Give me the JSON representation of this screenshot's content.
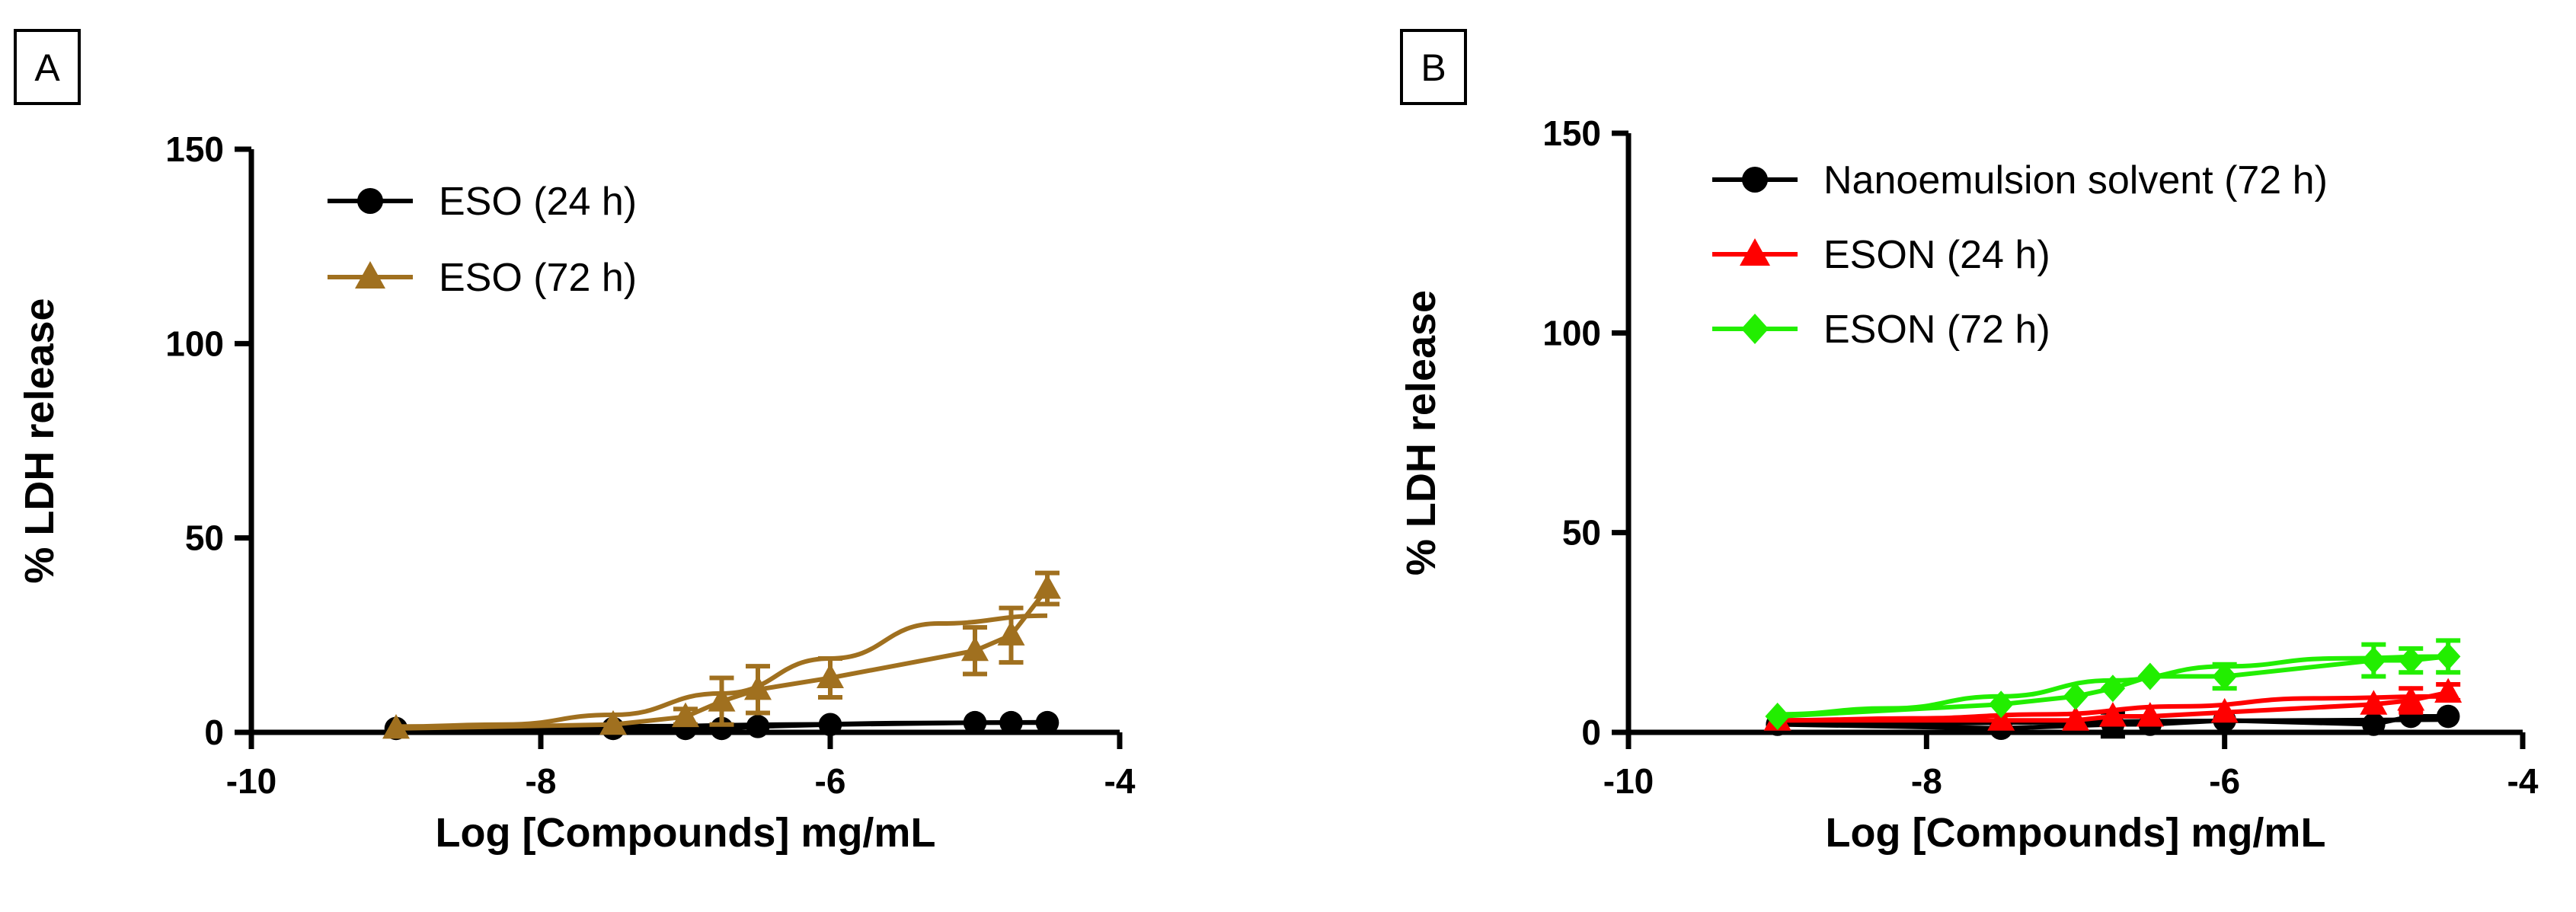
{
  "chart_data": [
    {
      "panel_label": "A",
      "type": "line",
      "xlabel": "Log [Compounds] mg/mL",
      "ylabel": "% LDH release",
      "xlim": [
        -10,
        -4
      ],
      "ylim": [
        0,
        150
      ],
      "xticks": [
        "-10",
        "-8",
        "-6",
        "-4"
      ],
      "yticks": [
        "0",
        "50",
        "100",
        "150"
      ],
      "legend_position": "top-left",
      "series": [
        {
          "name": "ESO (24 h)",
          "color": "#000000",
          "marker": "circle",
          "x": [
            -9,
            -7.5,
            -7,
            -6.75,
            -6.5,
            -6,
            -5,
            -4.75,
            -4.5
          ],
          "y": [
            1,
            1,
            1,
            1,
            1.5,
            2,
            2.5,
            2.5,
            2.5
          ],
          "err": [
            0,
            0,
            0,
            0,
            0,
            0,
            0,
            0,
            0
          ],
          "fit": [
            1,
            1.3,
            1.6,
            2,
            2.4,
            2.6
          ]
        },
        {
          "name": "ESO (72 h)",
          "color": "#A0701F",
          "marker": "triangle",
          "x": [
            -9,
            -7.5,
            -7,
            -6.75,
            -6.5,
            -6,
            -5,
            -4.75,
            -4.5
          ],
          "y": [
            1,
            2,
            4,
            8,
            11,
            14,
            21,
            25,
            37
          ],
          "err": [
            0,
            0,
            2,
            6,
            6,
            5,
            6,
            7,
            4
          ],
          "fit": [
            1.5,
            2,
            4.5,
            10,
            19,
            28,
            30
          ]
        }
      ]
    },
    {
      "panel_label": "B",
      "type": "line",
      "xlabel": "Log [Compounds] mg/mL",
      "ylabel": "% LDH release",
      "xlim": [
        -10,
        -4
      ],
      "ylim": [
        0,
        150
      ],
      "xticks": [
        "-10",
        "-8",
        "-6",
        "-4"
      ],
      "yticks": [
        "0",
        "50",
        "100",
        "150"
      ],
      "legend_position": "top-left",
      "series": [
        {
          "name": "Nanoemulsion solvent (72 h)",
          "color": "#000000",
          "marker": "circle",
          "x": [
            -9,
            -7.5,
            -6.75,
            -6.5,
            -6,
            -5,
            -4.75,
            -4.5
          ],
          "y": [
            2,
            1,
            2,
            2,
            3,
            2,
            4,
            4
          ],
          "err": [
            0,
            0,
            3,
            0,
            0,
            0,
            0,
            0
          ],
          "fit": [
            2,
            2.2,
            2.5,
            2.8,
            3,
            3.2
          ]
        },
        {
          "name": "ESON (24 h)",
          "color": "#FF0000",
          "marker": "triangle",
          "x": [
            -9,
            -7.5,
            -7,
            -6.75,
            -6.5,
            -6,
            -5,
            -4.75,
            -4.5
          ],
          "y": [
            3,
            3,
            3,
            4,
            4,
            5,
            7,
            8,
            10
          ],
          "err": [
            0,
            0,
            0,
            0,
            0,
            0,
            0,
            3,
            2
          ],
          "fit": [
            3,
            3.5,
            4.5,
            6.5,
            8.5,
            9
          ]
        },
        {
          "name": "ESON (72 h)",
          "color": "#22EE00",
          "marker": "diamond",
          "x": [
            -9,
            -7.5,
            -7,
            -6.75,
            -6.5,
            -6,
            -5,
            -4.75,
            -4.5
          ],
          "y": [
            4,
            7,
            9,
            11,
            14,
            14,
            18,
            18,
            19
          ],
          "err": [
            0,
            0,
            0,
            0,
            0,
            3,
            4,
            3,
            4
          ],
          "fit": [
            4.5,
            6,
            9,
            13,
            16.5,
            18.5,
            19
          ]
        }
      ]
    }
  ]
}
